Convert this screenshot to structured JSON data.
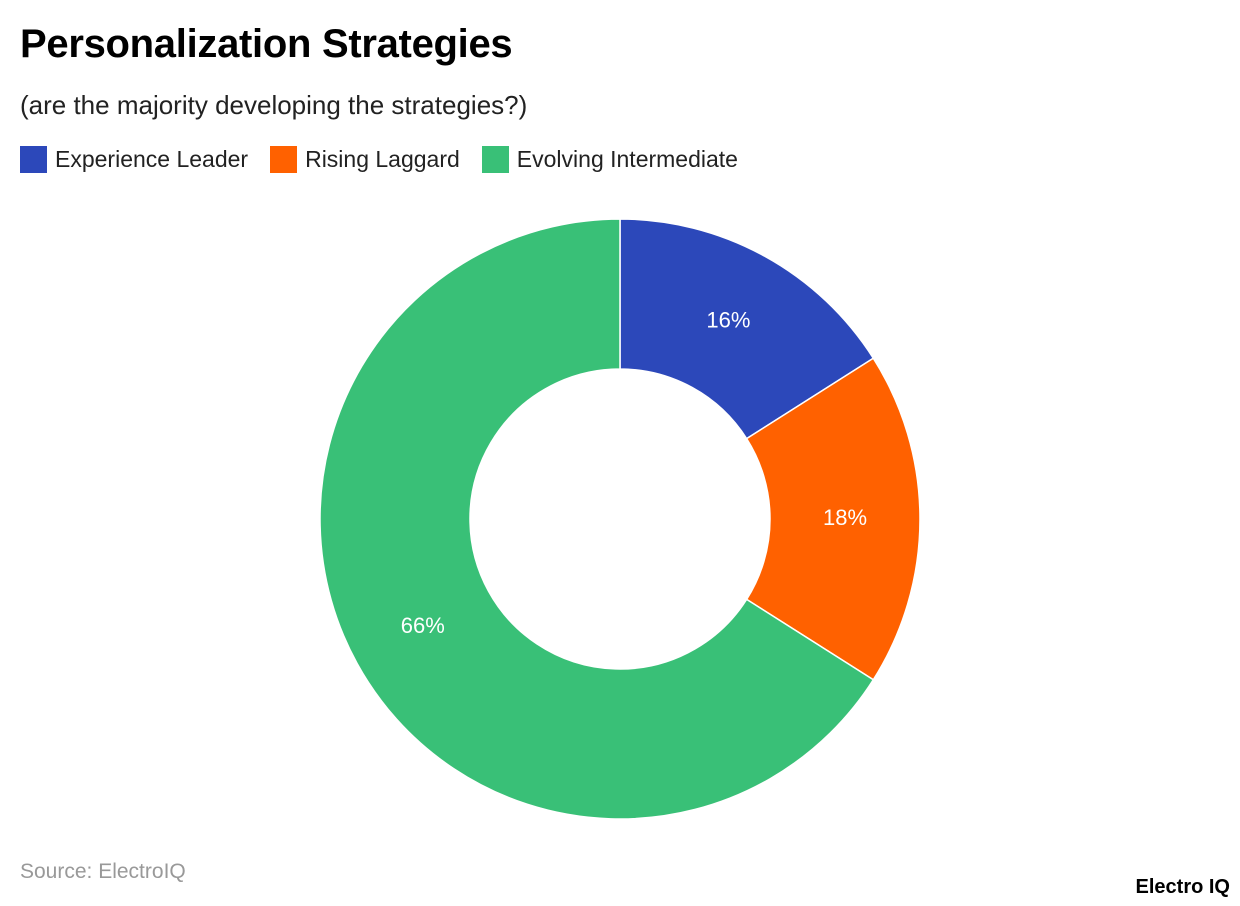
{
  "chart_data": {
    "type": "pie",
    "title": "Personalization Strategies",
    "subtitle": "(are the majority developing the strategies?)",
    "legend_position": "top-left",
    "donut": true,
    "categories": [
      "Experience Leader",
      "Rising Laggard",
      "Evolving Intermediate"
    ],
    "values": [
      16,
      18,
      66
    ],
    "labels": [
      "16%",
      "18%",
      "66%"
    ],
    "colors": [
      "#2C48BA",
      "#FF6100",
      "#39C077"
    ]
  },
  "footer": {
    "source": "Source: ElectroIQ",
    "brand": "Electro IQ"
  }
}
